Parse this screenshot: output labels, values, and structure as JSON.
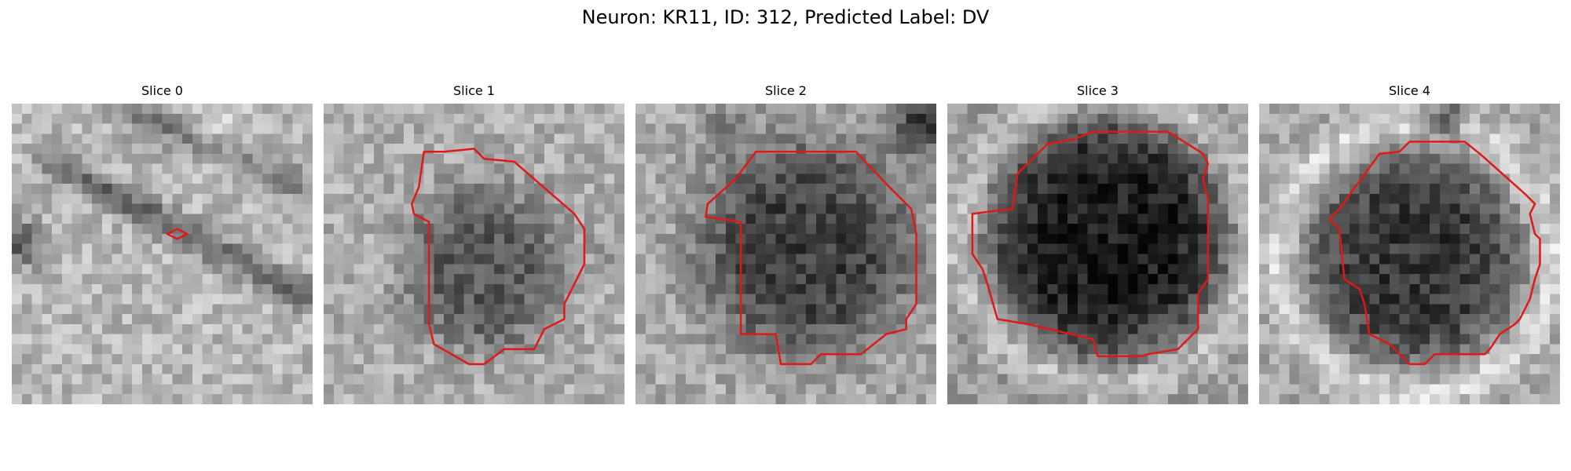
{
  "figure": {
    "title": "Neuron: KR11, ID: 312, Predicted Label: DV"
  },
  "panels": [
    {
      "title": "Slice 0"
    },
    {
      "title": "Slice 1"
    },
    {
      "title": "Slice 2"
    },
    {
      "title": "Slice 3"
    },
    {
      "title": "Slice 4"
    }
  ],
  "colors": {
    "contour": "#e01818",
    "background": "#ffffff"
  }
}
